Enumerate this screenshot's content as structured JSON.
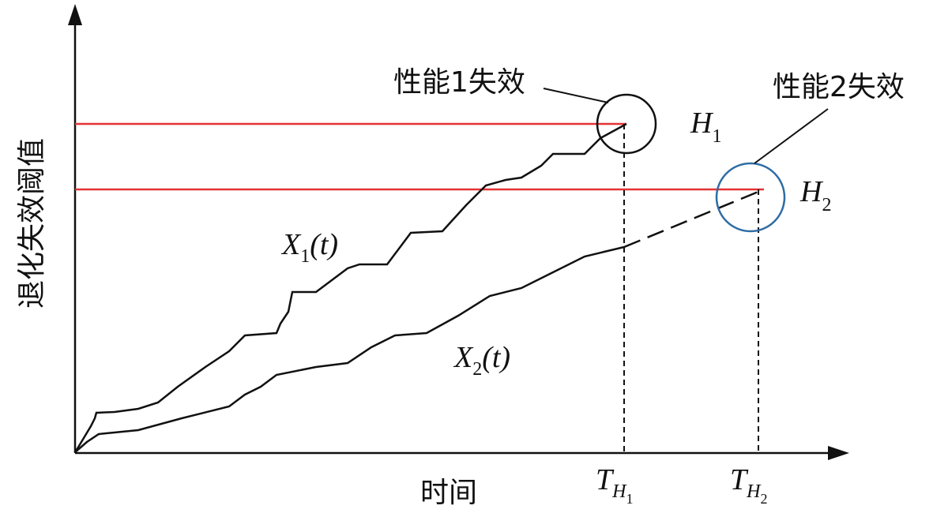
{
  "y_axis_label": "退化失效阈值",
  "x_axis_label": "时间",
  "failure_1": "性能1失效",
  "failure_2": "性能2失效",
  "threshold_1": {
    "main": "H",
    "sub": "1"
  },
  "threshold_2": {
    "main": "H",
    "sub": "2"
  },
  "process_1": {
    "main": "X",
    "sub": "1",
    "arg": "(t)"
  },
  "process_2": {
    "main": "X",
    "sub": "2",
    "arg": "(t)"
  },
  "time_1": {
    "main": "T",
    "sub": "H",
    "subsub": "1"
  },
  "time_2": {
    "main": "T",
    "sub": "H",
    "subsub": "2"
  }
}
